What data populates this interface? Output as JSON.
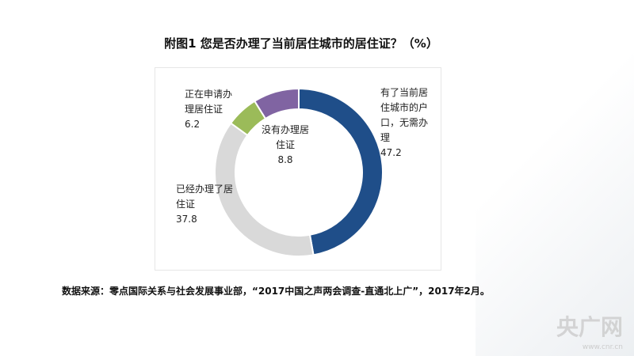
{
  "chart_data": {
    "type": "pie",
    "title": "附图1  您是否办理了当前居住城市的居住证？（%）",
    "slices": [
      {
        "label": "有了当前居住城市的户口，无需办理",
        "value": 47.2,
        "color": "#1f4e89"
      },
      {
        "label": "已经办理了居住证",
        "value": 37.8,
        "color": "#d9d9d9"
      },
      {
        "label": "正在申请办理居住证",
        "value": 6.2,
        "color": "#9bbb59"
      },
      {
        "label": "没有办理居住证",
        "value": 8.8,
        "color": "#8064a2"
      }
    ],
    "donut": true
  },
  "source": "数据来源：零点国际关系与社会发展事业部，“2017中国之声两会调查-直通北上广”，2017年2月。",
  "watermark": "央广网 www.cnr.cn"
}
